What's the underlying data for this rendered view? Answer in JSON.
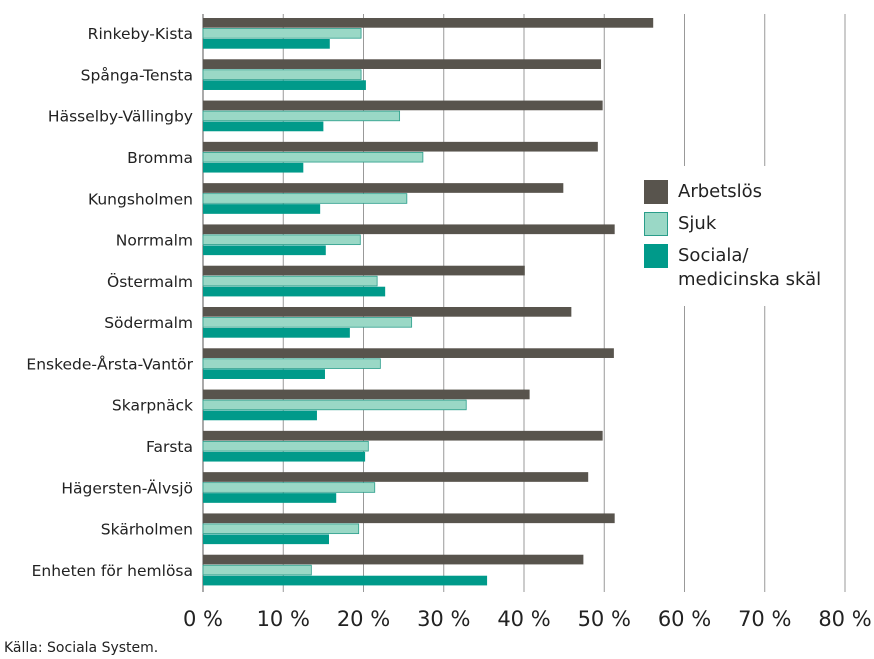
{
  "chart_data": {
    "type": "bar",
    "orientation": "horizontal",
    "categories": [
      "Rinkeby-Kista",
      "Spånga-Tensta",
      "Hässelby-Vällingby",
      "Bromma",
      "Kungsholmen",
      "Norrmalm",
      "Östermalm",
      "Södermalm",
      "Enskede-Årsta-Vantör",
      "Skarpnäck",
      "Farsta",
      "Hägersten-Älvsjö",
      "Skärholmen",
      "Enheten för hemlösa"
    ],
    "series": [
      {
        "name": "Arbetslös",
        "color": "#58544d",
        "values": [
          56.1,
          49.6,
          49.8,
          49.2,
          44.9,
          51.3,
          40.1,
          45.9,
          51.2,
          40.7,
          49.8,
          48.0,
          51.3,
          47.4
        ]
      },
      {
        "name": "Sjuk",
        "color": "#9ad8c6",
        "values": [
          19.7,
          19.7,
          24.5,
          27.4,
          25.4,
          19.6,
          21.7,
          26.0,
          22.1,
          32.8,
          20.6,
          21.4,
          19.4,
          13.5
        ]
      },
      {
        "name": "Sociala/ medicinska skäl",
        "color": "#009a8a",
        "values": [
          15.8,
          20.3,
          15.0,
          12.5,
          14.6,
          15.3,
          22.7,
          18.3,
          15.2,
          14.2,
          20.2,
          16.6,
          15.7,
          35.4
        ]
      }
    ],
    "xlim": [
      0,
      80
    ],
    "xticks": [
      {
        "value": 0,
        "label": "0 %"
      },
      {
        "value": 10,
        "label": "10 %"
      },
      {
        "value": 20,
        "label": "20 %"
      },
      {
        "value": 30,
        "label": "30 %"
      },
      {
        "value": 40,
        "label": "40 %"
      },
      {
        "value": 50,
        "label": "50 %"
      },
      {
        "value": 60,
        "label": "60 %"
      },
      {
        "value": 70,
        "label": "70 %"
      },
      {
        "value": 80,
        "label": "80 %"
      }
    ],
    "grid": true,
    "legend": "right",
    "source": "Källa: Sociala System."
  }
}
